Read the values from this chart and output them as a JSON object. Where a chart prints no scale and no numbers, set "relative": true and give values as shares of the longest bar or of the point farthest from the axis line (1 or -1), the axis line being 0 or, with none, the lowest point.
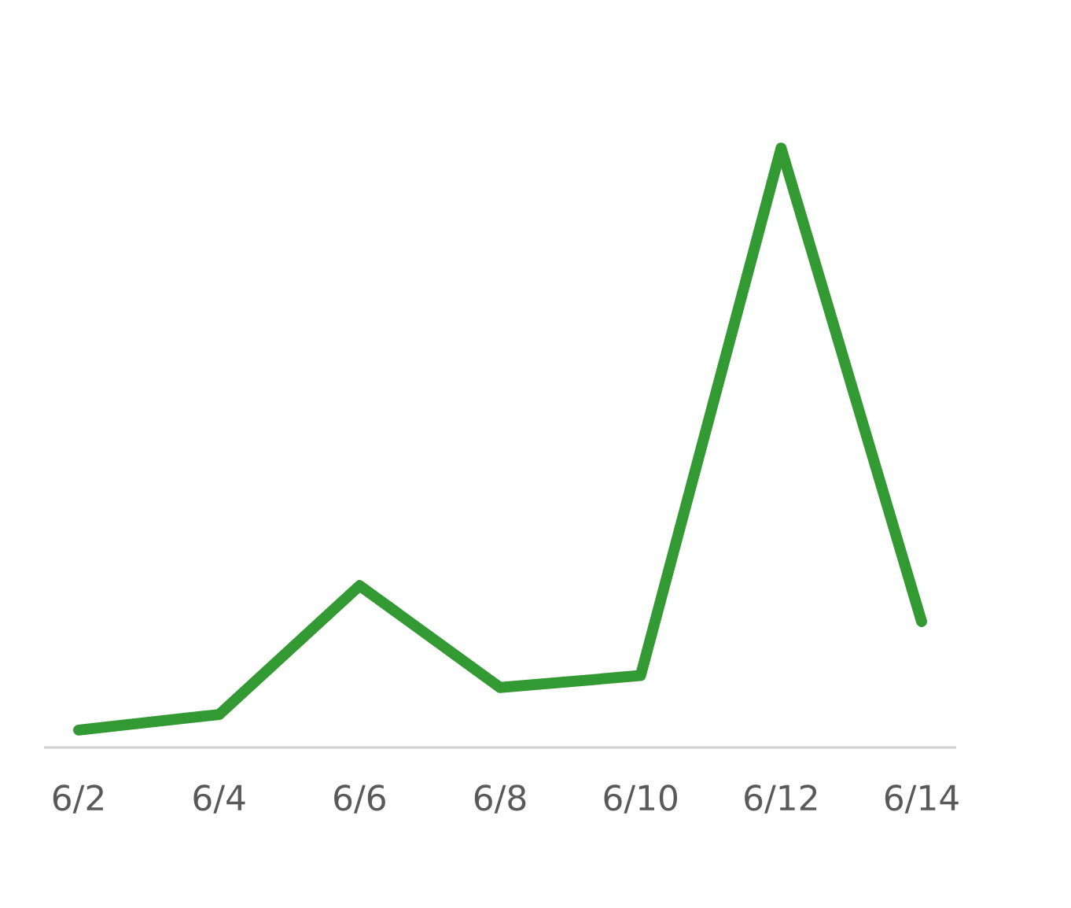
{
  "chart_data": {
    "type": "line",
    "relative": true,
    "categories": [
      "6/2",
      "6/4",
      "6/6",
      "6/8",
      "6/10",
      "6/12",
      "6/14"
    ],
    "series": [
      {
        "color": "#339933",
        "values": [
          0.029,
          0.055,
          0.27,
          0.1,
          0.12,
          1,
          0.21
        ]
      }
    ]
  }
}
